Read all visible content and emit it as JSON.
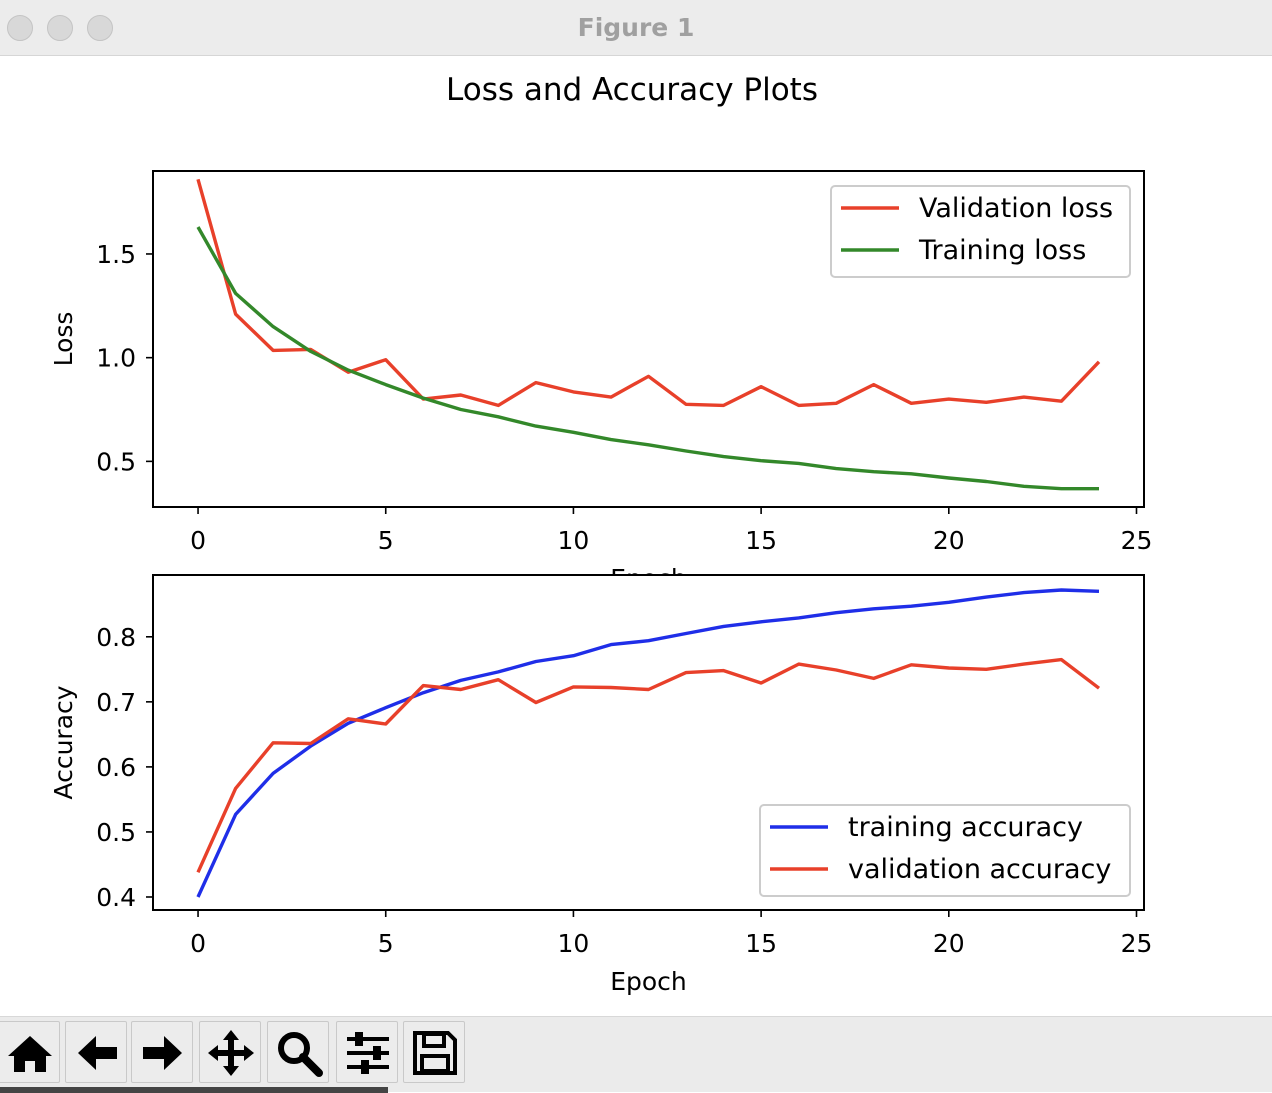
{
  "window": {
    "title": "Figure 1",
    "traffic_lights": [
      "close-button",
      "minimize-button",
      "zoom-button"
    ]
  },
  "figure": {
    "suptitle": "Loss and Accuracy Plots"
  },
  "chart_data": [
    {
      "type": "line",
      "xlabel": "Epoch",
      "ylabel": "Loss",
      "xlim": [
        -1.2,
        25.2
      ],
      "ylim": [
        0.28,
        1.9
      ],
      "xticks": [
        "0",
        "5",
        "10",
        "15",
        "20",
        "25"
      ],
      "yticks": [
        "0.5",
        "1.0",
        "1.5"
      ],
      "legend_position": "upper right",
      "x": [
        0,
        1,
        2,
        3,
        4,
        5,
        6,
        7,
        8,
        9,
        10,
        11,
        12,
        13,
        14,
        15,
        16,
        17,
        18,
        19,
        20,
        21,
        22,
        23,
        24
      ],
      "series": [
        {
          "name": "Validation loss",
          "color": "#e8402a",
          "values": [
            1.86,
            1.21,
            1.035,
            1.04,
            0.93,
            0.99,
            0.8,
            0.82,
            0.77,
            0.88,
            0.835,
            0.81,
            0.91,
            0.775,
            0.77,
            0.86,
            0.77,
            0.78,
            0.87,
            0.78,
            0.8,
            0.785,
            0.81,
            0.79,
            0.98
          ]
        },
        {
          "name": "Training loss",
          "color": "#33882a",
          "values": [
            1.63,
            1.31,
            1.15,
            1.03,
            0.94,
            0.87,
            0.805,
            0.75,
            0.715,
            0.67,
            0.64,
            0.605,
            0.58,
            0.55,
            0.523,
            0.503,
            0.49,
            0.465,
            0.45,
            0.44,
            0.42,
            0.403,
            0.38,
            0.368,
            0.368
          ]
        }
      ]
    },
    {
      "type": "line",
      "xlabel": "Epoch",
      "ylabel": "Accuracy",
      "xlim": [
        -1.2,
        25.2
      ],
      "ylim": [
        0.38,
        0.895
      ],
      "xticks": [
        "0",
        "5",
        "10",
        "15",
        "20",
        "25"
      ],
      "yticks": [
        "0.4",
        "0.5",
        "0.6",
        "0.7",
        "0.8"
      ],
      "legend_position": "lower right",
      "x": [
        0,
        1,
        2,
        3,
        4,
        5,
        6,
        7,
        8,
        9,
        10,
        11,
        12,
        13,
        14,
        15,
        16,
        17,
        18,
        19,
        20,
        21,
        22,
        23,
        24
      ],
      "series": [
        {
          "name": "training accuracy",
          "color": "#1f2ee8",
          "values": [
            0.4,
            0.527,
            0.59,
            0.632,
            0.667,
            0.691,
            0.714,
            0.733,
            0.746,
            0.762,
            0.771,
            0.788,
            0.794,
            0.805,
            0.816,
            0.823,
            0.829,
            0.837,
            0.843,
            0.847,
            0.853,
            0.861,
            0.868,
            0.872,
            0.87
          ]
        },
        {
          "name": "validation accuracy",
          "color": "#e8402a",
          "values": [
            0.438,
            0.567,
            0.637,
            0.636,
            0.674,
            0.666,
            0.725,
            0.719,
            0.734,
            0.699,
            0.723,
            0.722,
            0.719,
            0.745,
            0.748,
            0.729,
            0.758,
            0.749,
            0.736,
            0.757,
            0.752,
            0.75,
            0.758,
            0.765,
            0.721
          ]
        }
      ]
    }
  ],
  "toolbar": {
    "tools": [
      {
        "name": "home-button",
        "icon": "home-icon"
      },
      {
        "name": "back-button",
        "icon": "arrow-left-icon"
      },
      {
        "name": "forward-button",
        "icon": "arrow-right-icon"
      },
      {
        "name": "pan-button",
        "icon": "move-icon"
      },
      {
        "name": "zoom-button",
        "icon": "magnifier-icon"
      },
      {
        "name": "configure-subplots-button",
        "icon": "sliders-icon"
      },
      {
        "name": "save-button",
        "icon": "floppy-disk-icon"
      }
    ]
  }
}
